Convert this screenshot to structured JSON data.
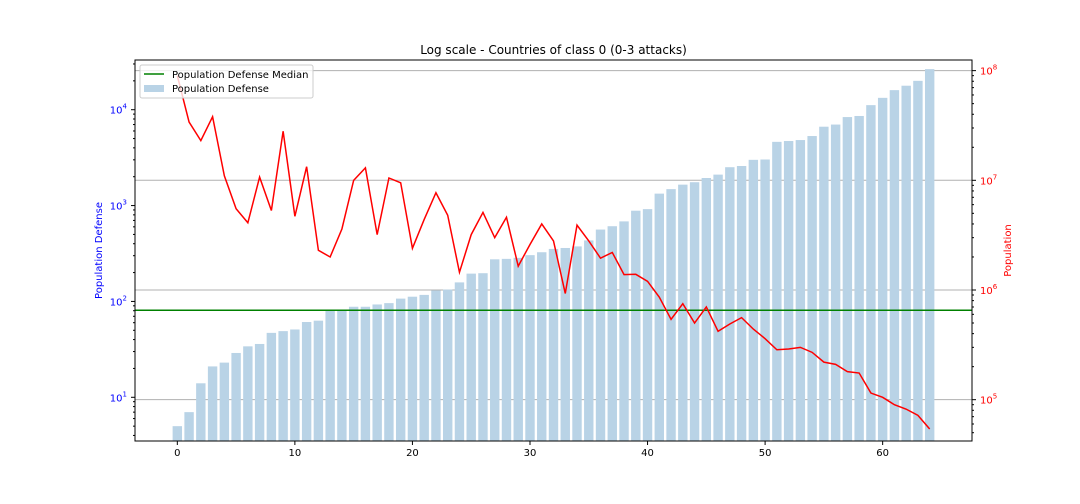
{
  "chart_data": {
    "type": "bar",
    "title": "Log scale - Countries of class 0 (0-3 attacks)",
    "x": [
      0,
      1,
      2,
      3,
      4,
      5,
      6,
      7,
      8,
      9,
      10,
      11,
      12,
      13,
      14,
      15,
      16,
      17,
      18,
      19,
      20,
      21,
      22,
      23,
      24,
      25,
      26,
      27,
      28,
      29,
      30,
      31,
      32,
      33,
      34,
      35,
      36,
      37,
      38,
      39,
      40,
      41,
      42,
      43,
      44,
      45,
      46,
      47,
      48,
      49,
      50,
      51,
      52,
      53,
      54,
      55,
      56,
      57,
      58,
      59,
      60,
      61,
      62,
      63,
      64
    ],
    "xticks": [
      "0",
      "10",
      "20",
      "30",
      "40",
      "50",
      "60"
    ],
    "xlim": [
      -3.6,
      67.6
    ],
    "xlabel": "",
    "ylabel": "Population Defense",
    "ylabel_right": "Population",
    "ylim": [
      3.5,
      33000
    ],
    "ylim_right": [
      42000,
      125000000
    ],
    "yscale": "log",
    "yscale_right": "log",
    "yticks": [
      {
        "value": 10,
        "base": "10",
        "exp": "1"
      },
      {
        "value": 100,
        "base": "10",
        "exp": "2"
      },
      {
        "value": 1000,
        "base": "10",
        "exp": "3"
      },
      {
        "value": 10000,
        "base": "10",
        "exp": "4"
      }
    ],
    "yticks_right": [
      {
        "value": 100000,
        "base": "10",
        "exp": "5"
      },
      {
        "value": 1000000,
        "base": "10",
        "exp": "6"
      },
      {
        "value": 10000000,
        "base": "10",
        "exp": "7"
      },
      {
        "value": 100000000,
        "base": "10",
        "exp": "8"
      }
    ],
    "grid": "horizontal (right axis)",
    "legend_position": "upper-left",
    "colors": {
      "bars": "#b9d3e6",
      "median": "#008000",
      "line": "#ff0000",
      "left_axis": "#0000ff",
      "right_axis": "#ff0000",
      "grid": "#b0b0b0"
    },
    "series": [
      {
        "name": "Population Defense",
        "kind": "bar",
        "axis": "left",
        "values": [
          5,
          7,
          14,
          21,
          23,
          29,
          34,
          36,
          47,
          49,
          51,
          61,
          63,
          80,
          81,
          88,
          88,
          93,
          96,
          107,
          112,
          117,
          130,
          133,
          158,
          195,
          197,
          275,
          278,
          285,
          304,
          326,
          353,
          361,
          375,
          433,
          562,
          609,
          684,
          884,
          918,
          1332,
          1484,
          1653,
          1752,
          1939,
          2103,
          2513,
          2587,
          3000,
          3024,
          4620,
          4714,
          4825,
          5313,
          6648,
          7000,
          8381,
          8600,
          11160,
          13300,
          16000,
          17792,
          20000,
          26500
        ]
      },
      {
        "name": "Population Defense Median",
        "kind": "hline",
        "axis": "left",
        "value": 81
      },
      {
        "name": "",
        "kind": "line",
        "axis": "right",
        "values": [
          90000000,
          34000000,
          23000000,
          38000000,
          11000000,
          5500000,
          4100000,
          10700000,
          5300000,
          28000000,
          4700000,
          13300000,
          2300000,
          2000000,
          3600000,
          10000000,
          13000000,
          3200000,
          10500000,
          9500000,
          2400000,
          4400000,
          7700000,
          4800000,
          1450000,
          3200000,
          5100000,
          3000000,
          4600000,
          1650000,
          2600000,
          4000000,
          2800000,
          930000,
          3900000,
          2800000,
          1950000,
          2200000,
          1380000,
          1390000,
          1200000,
          860000,
          540000,
          750000,
          500000,
          700000,
          420000,
          490000,
          560000,
          440000,
          360000,
          285000,
          290000,
          300000,
          270000,
          220000,
          210000,
          180000,
          175000,
          115000,
          105000,
          90000,
          82000,
          72000,
          54000
        ]
      }
    ]
  }
}
